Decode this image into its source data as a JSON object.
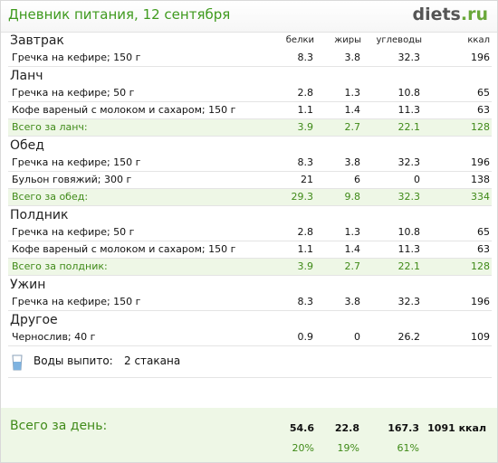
{
  "header": {
    "title": "Дневник питания, 12 сентября",
    "logo_main": "diets",
    "logo_suffix": ".ru"
  },
  "columns": {
    "protein": "белки",
    "fat": "жиры",
    "carbs": "углеводы",
    "kcal": "ккал"
  },
  "sections": [
    {
      "title": "Завтрак",
      "rows": [
        {
          "name": "Гречка на кефире; 150 г",
          "protein": "8.3",
          "fat": "3.8",
          "carbs": "32.3",
          "kcal": "196"
        }
      ],
      "total": null
    },
    {
      "title": "Ланч",
      "rows": [
        {
          "name": "Гречка на кефире; 50 г",
          "protein": "2.8",
          "fat": "1.3",
          "carbs": "10.8",
          "kcal": "65"
        },
        {
          "name": "Кофе вареный с молоком и сахаром; 150 г",
          "protein": "1.1",
          "fat": "1.4",
          "carbs": "11.3",
          "kcal": "63"
        }
      ],
      "total": {
        "name": "Всего за ланч:",
        "protein": "3.9",
        "fat": "2.7",
        "carbs": "22.1",
        "kcal": "128"
      }
    },
    {
      "title": "Обед",
      "rows": [
        {
          "name": "Гречка на кефире; 150 г",
          "protein": "8.3",
          "fat": "3.8",
          "carbs": "32.3",
          "kcal": "196"
        },
        {
          "name": "Бульон говяжий; 300 г",
          "protein": "21",
          "fat": "6",
          "carbs": "0",
          "kcal": "138"
        }
      ],
      "total": {
        "name": "Всего за обед:",
        "protein": "29.3",
        "fat": "9.8",
        "carbs": "32.3",
        "kcal": "334"
      }
    },
    {
      "title": "Полдник",
      "rows": [
        {
          "name": "Гречка на кефире; 50 г",
          "protein": "2.8",
          "fat": "1.3",
          "carbs": "10.8",
          "kcal": "65"
        },
        {
          "name": "Кофе вареный с молоком и сахаром; 150 г",
          "protein": "1.1",
          "fat": "1.4",
          "carbs": "11.3",
          "kcal": "63"
        }
      ],
      "total": {
        "name": "Всего за полдник:",
        "protein": "3.9",
        "fat": "2.7",
        "carbs": "22.1",
        "kcal": "128"
      }
    },
    {
      "title": "Ужин",
      "rows": [
        {
          "name": "Гречка на кефире; 150 г",
          "protein": "8.3",
          "fat": "3.8",
          "carbs": "32.3",
          "kcal": "196"
        }
      ],
      "total": null
    },
    {
      "title": "Другое",
      "rows": [
        {
          "name": "Чернослив; 40 г",
          "protein": "0.9",
          "fat": "0",
          "carbs": "26.2",
          "kcal": "109"
        }
      ],
      "total": null
    }
  ],
  "water": {
    "icon": "water-glass-icon",
    "label": "Воды выпито:",
    "value": "2 стакана"
  },
  "day": {
    "label": "Всего за день:",
    "protein": "54.6",
    "fat": "22.8",
    "carbs": "167.3",
    "kcal": "1091 ккал",
    "protein_pct": "20%",
    "fat_pct": "19%",
    "carbs_pct": "61%"
  },
  "colors": {
    "accent_green": "#3f8a18",
    "title_green": "#3f9a1e",
    "total_bg": "#eef7e6"
  }
}
